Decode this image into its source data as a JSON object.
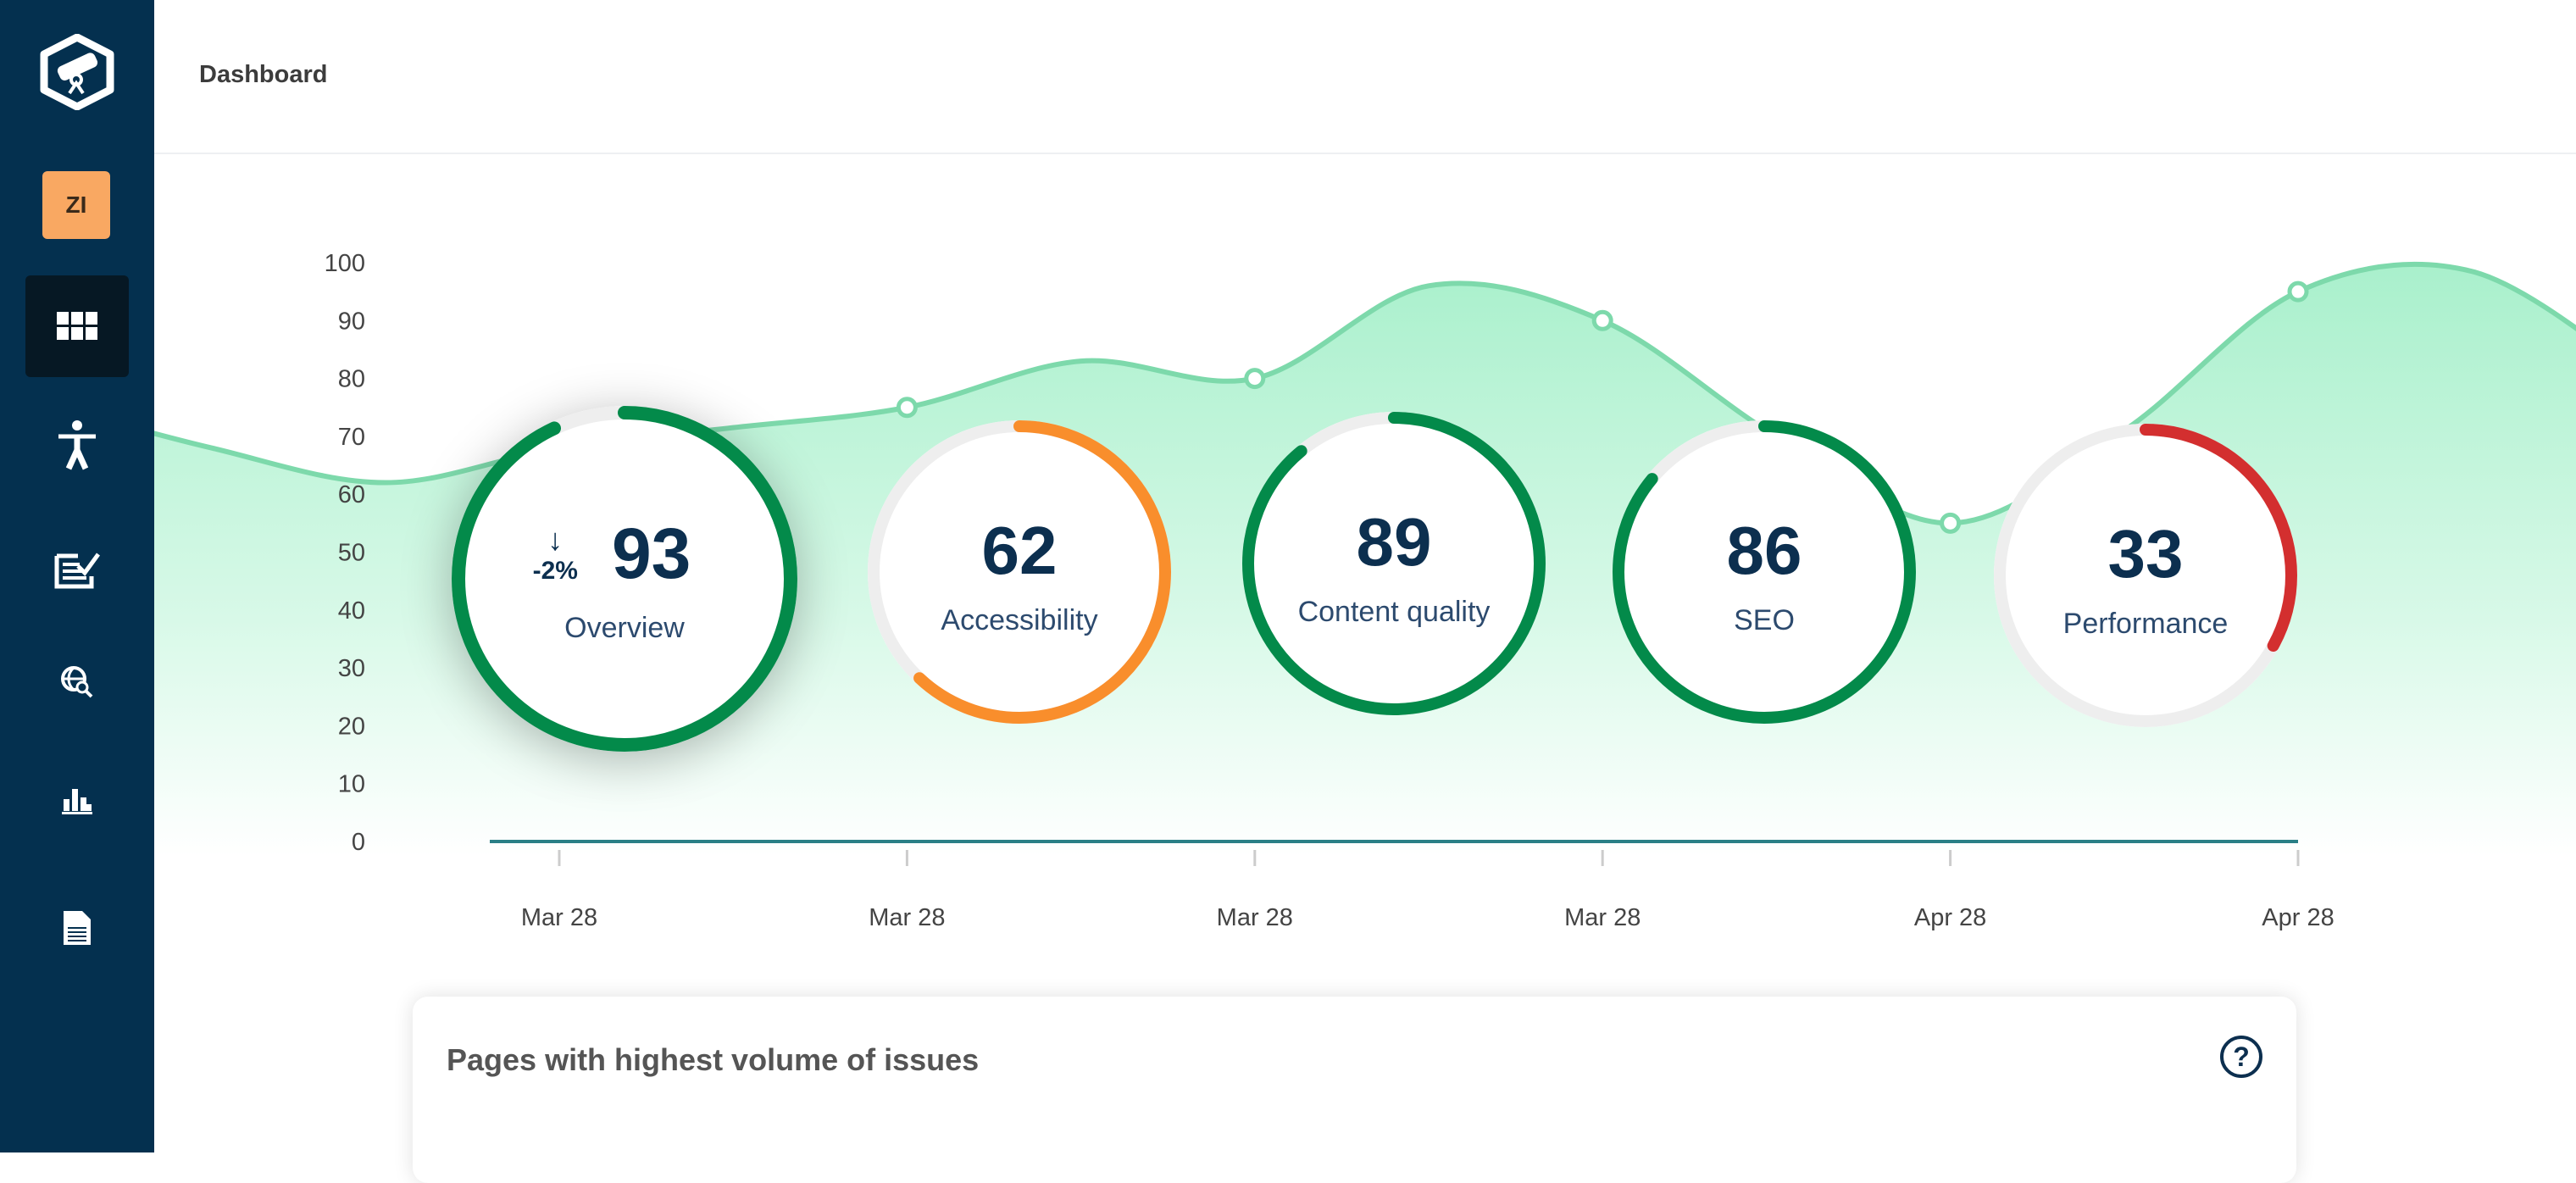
{
  "header": {
    "title": "Dashboard"
  },
  "sidebar": {
    "avatar_initials": "ZI",
    "items": [
      {
        "icon": "grid-icon",
        "active": true
      },
      {
        "icon": "accessibility-icon"
      },
      {
        "icon": "content-check-icon"
      },
      {
        "icon": "globe-search-icon"
      },
      {
        "icon": "bar-chart-icon"
      },
      {
        "icon": "document-icon"
      }
    ]
  },
  "colors": {
    "sidebar": "#04304f",
    "avatar": "#f9a862",
    "line": "#7dd9ab",
    "fill": "#b5f3d3",
    "good": "#038a4a",
    "warn": "#f98e2c",
    "bad": "#d32f2f",
    "track": "#eeeeee",
    "axis": "#2a7f86"
  },
  "chart_data": {
    "type": "area",
    "yticks": [
      0,
      10,
      20,
      30,
      40,
      50,
      60,
      70,
      80,
      90,
      100
    ],
    "ylim": [
      0,
      100
    ],
    "categories": [
      "Mar 28",
      "Mar 28",
      "Mar 28",
      "Mar 28",
      "Apr 28",
      "Apr 28"
    ],
    "values": [
      68,
      75,
      80,
      90,
      55,
      95
    ],
    "curve_values": [
      76,
      68,
      62,
      68,
      71.5,
      75,
      83,
      80,
      96,
      90,
      70,
      55,
      71,
      95,
      98.5,
      80
    ],
    "grid": false
  },
  "gauges": [
    {
      "label": "Overview",
      "value": 93,
      "change": "-2%",
      "change_icon": "arrow-down-icon",
      "color": "#038a4a"
    },
    {
      "label": "Accessibility",
      "value": 62,
      "color": "#f98e2c"
    },
    {
      "label": "Content quality",
      "value": 89,
      "color": "#038a4a"
    },
    {
      "label": "SEO",
      "value": 86,
      "color": "#038a4a"
    },
    {
      "label": "Performance",
      "value": 33,
      "color": "#d32f2f"
    }
  ],
  "card": {
    "title": "Pages with highest volume of issues",
    "help_icon": "?"
  }
}
